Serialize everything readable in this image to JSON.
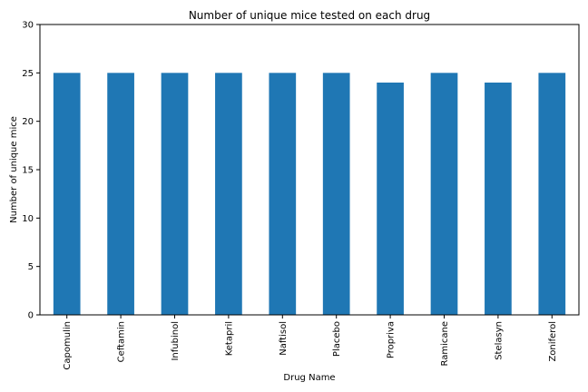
{
  "chart_data": {
    "type": "bar",
    "title": "Number of unique mice tested on each drug",
    "xlabel": "Drug Name",
    "ylabel": "Number of unique mice",
    "categories": [
      "Capomulin",
      "Ceftamin",
      "Infubinol",
      "Ketapril",
      "Naftisol",
      "Placebo",
      "Propriva",
      "Ramicane",
      "Stelasyn",
      "Zoniferol"
    ],
    "values": [
      25,
      25,
      25,
      25,
      25,
      25,
      24,
      25,
      24,
      25
    ],
    "ylim": [
      0,
      30
    ],
    "yticks": [
      0,
      5,
      10,
      15,
      20,
      25,
      30
    ],
    "grid": false,
    "legend": "none",
    "bar_color": "#1f77b4"
  }
}
